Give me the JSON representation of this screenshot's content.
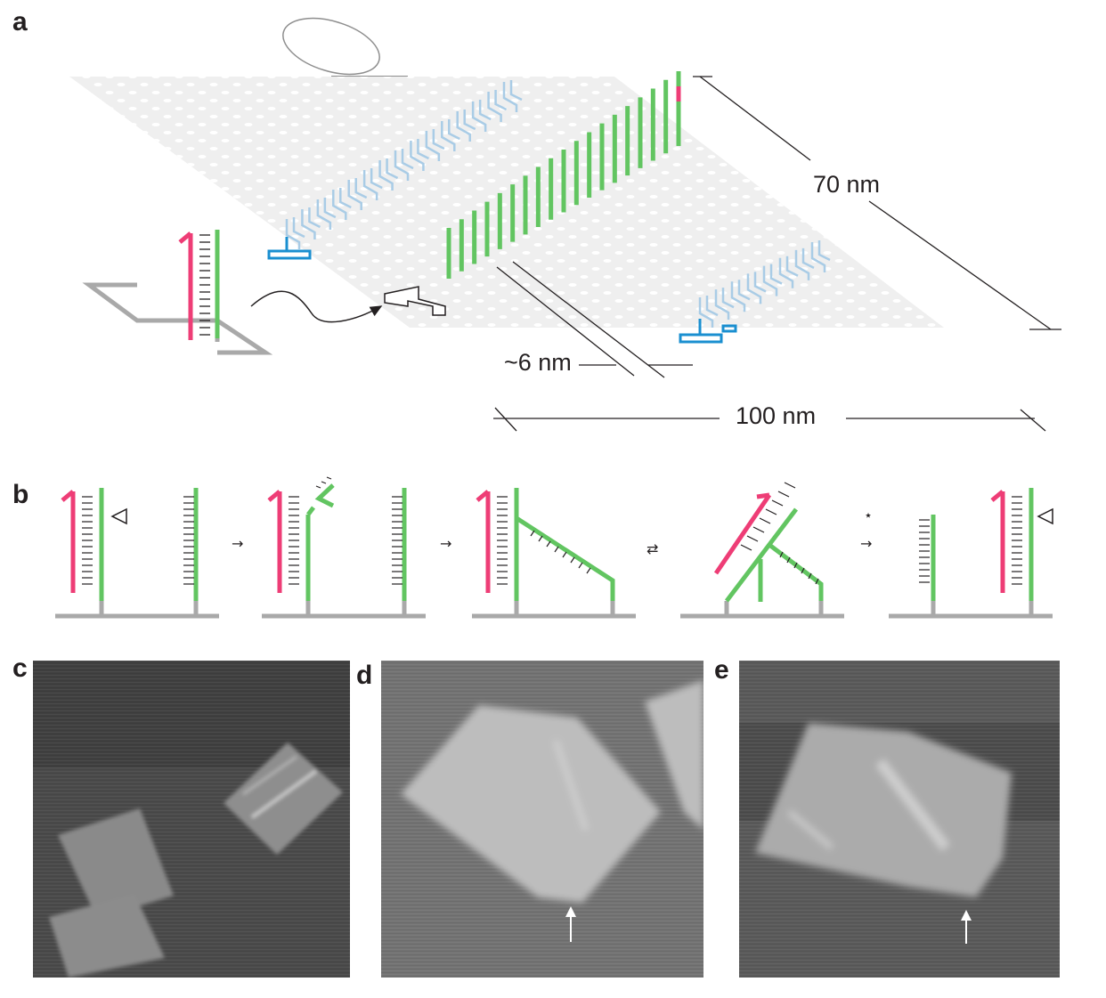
{
  "panels": {
    "a": {
      "label": "a",
      "dimensions": {
        "height": "70 nm",
        "width": "100 nm",
        "spacing": "~6 nm"
      },
      "colors": {
        "origami": "#efefef",
        "track": "#62c561",
        "leg": "#ee3d76",
        "marker_light": "#a9cce6",
        "marker_dark": "#1a8fd0",
        "grey": "#a9a9a9"
      }
    },
    "b": {
      "label": "b",
      "star": "⋆"
    },
    "c": {
      "label": "c"
    },
    "d": {
      "label": "d"
    },
    "e": {
      "label": "e"
    }
  }
}
